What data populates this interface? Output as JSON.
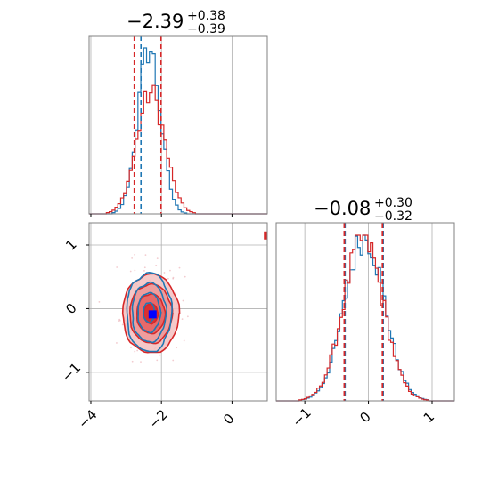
{
  "colors": {
    "blue": "#1f77b4",
    "red": "#d62728",
    "grid": "#b0b0b0",
    "truth_marker": "#0000ff",
    "frame": "#808080"
  },
  "chart_data": [
    {
      "type": "histogram",
      "panel": "param1-marginal",
      "title": {
        "value": "−2.39",
        "plus": "+0.38",
        "minus": "−0.39"
      },
      "xlim": [
        -4.05,
        1.0
      ],
      "xticks": [
        -4,
        -2,
        0
      ],
      "yticks_shown": false,
      "grid": true,
      "series": [
        {
          "name": "",
          "color": "#1f77b4",
          "center": -2.35,
          "sigma": 0.32,
          "peak": 1.0,
          "quantiles": [
            -2.58
          ]
        },
        {
          "name": "",
          "color": "#d62728",
          "center": -2.3,
          "sigma": 0.4,
          "peak": 0.73,
          "quantiles": [
            -2.77,
            -2.01
          ]
        }
      ]
    },
    {
      "type": "histogram",
      "panel": "param2-marginal",
      "title": {
        "value": "−0.08",
        "plus": "+0.30",
        "minus": "−0.32"
      },
      "xlim": [
        -1.45,
        1.35
      ],
      "xticks": [
        -1,
        0,
        1
      ],
      "xtick_labels": [
        "−1",
        "0",
        "1"
      ],
      "yticks_shown": false,
      "grid": true,
      "series": [
        {
          "name": "",
          "color": "#1f77b4",
          "center": -0.06,
          "sigma": 0.31,
          "peak": 1.0,
          "quantiles": [
            -0.38,
            0.22
          ]
        },
        {
          "name": "",
          "color": "#d62728",
          "center": -0.08,
          "sigma": 0.31,
          "peak": 0.98,
          "quantiles": [
            -0.38,
            0.22
          ]
        }
      ]
    },
    {
      "type": "contour",
      "panel": "joint-2d",
      "xlim": [
        -4.05,
        1.0
      ],
      "ylim": [
        -1.45,
        1.35
      ],
      "xticks": [
        -4,
        -2,
        0
      ],
      "xtick_labels": [
        "−4",
        "−2",
        "0"
      ],
      "yticks": [
        -1,
        0,
        1
      ],
      "ytick_labels": [
        "−1",
        "0",
        "1"
      ],
      "grid": true,
      "series": [
        {
          "name": "",
          "color": "#d62728",
          "center": [
            -2.3,
            -0.08
          ],
          "sx": 0.4,
          "sy": 0.31,
          "levels": [
            0.5,
            1.0,
            1.5,
            2.0
          ],
          "filled": true
        },
        {
          "name": "",
          "color": "#1f77b4",
          "center": [
            -2.35,
            -0.06
          ],
          "sx": 0.32,
          "sy": 0.31,
          "levels": [
            0.5,
            1.0,
            1.5,
            2.0
          ],
          "filled": false
        }
      ],
      "truth_point": {
        "x": -2.25,
        "y": -0.09,
        "color": "#0000ff"
      },
      "edge_marker": {
        "x": 0.98,
        "y": 1.15,
        "color": "#d62728"
      }
    }
  ]
}
